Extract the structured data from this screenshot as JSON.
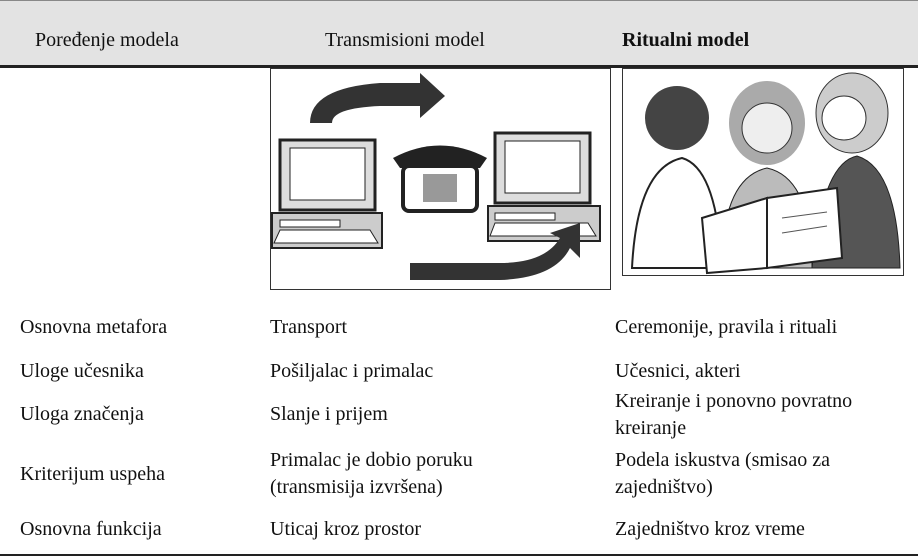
{
  "header": {
    "columns": [
      "Poređenje modela",
      "Transmisioni model",
      "Ritualni model"
    ]
  },
  "table": {
    "rows": [
      [
        "Osnovna metafora",
        "Transport",
        "Ceremonije, pravila i rituali"
      ],
      [
        "Uloge učesnika",
        "Pošiljalac i primalac",
        "Učesnici, akteri"
      ],
      [
        "Uloga značenja",
        "Slanje i prijem",
        "Kreiranje i ponovno povratno kreiranje"
      ],
      [
        "Kriterijum uspeha",
        "Primalac je dobio poruku (transmisija izvršena)",
        "Podela iskustva (smisao za zajedništvo)"
      ],
      [
        "Osnovna funkcija",
        "Uticaj kroz prostor",
        "Zajedništvo kroz vreme"
      ]
    ]
  }
}
